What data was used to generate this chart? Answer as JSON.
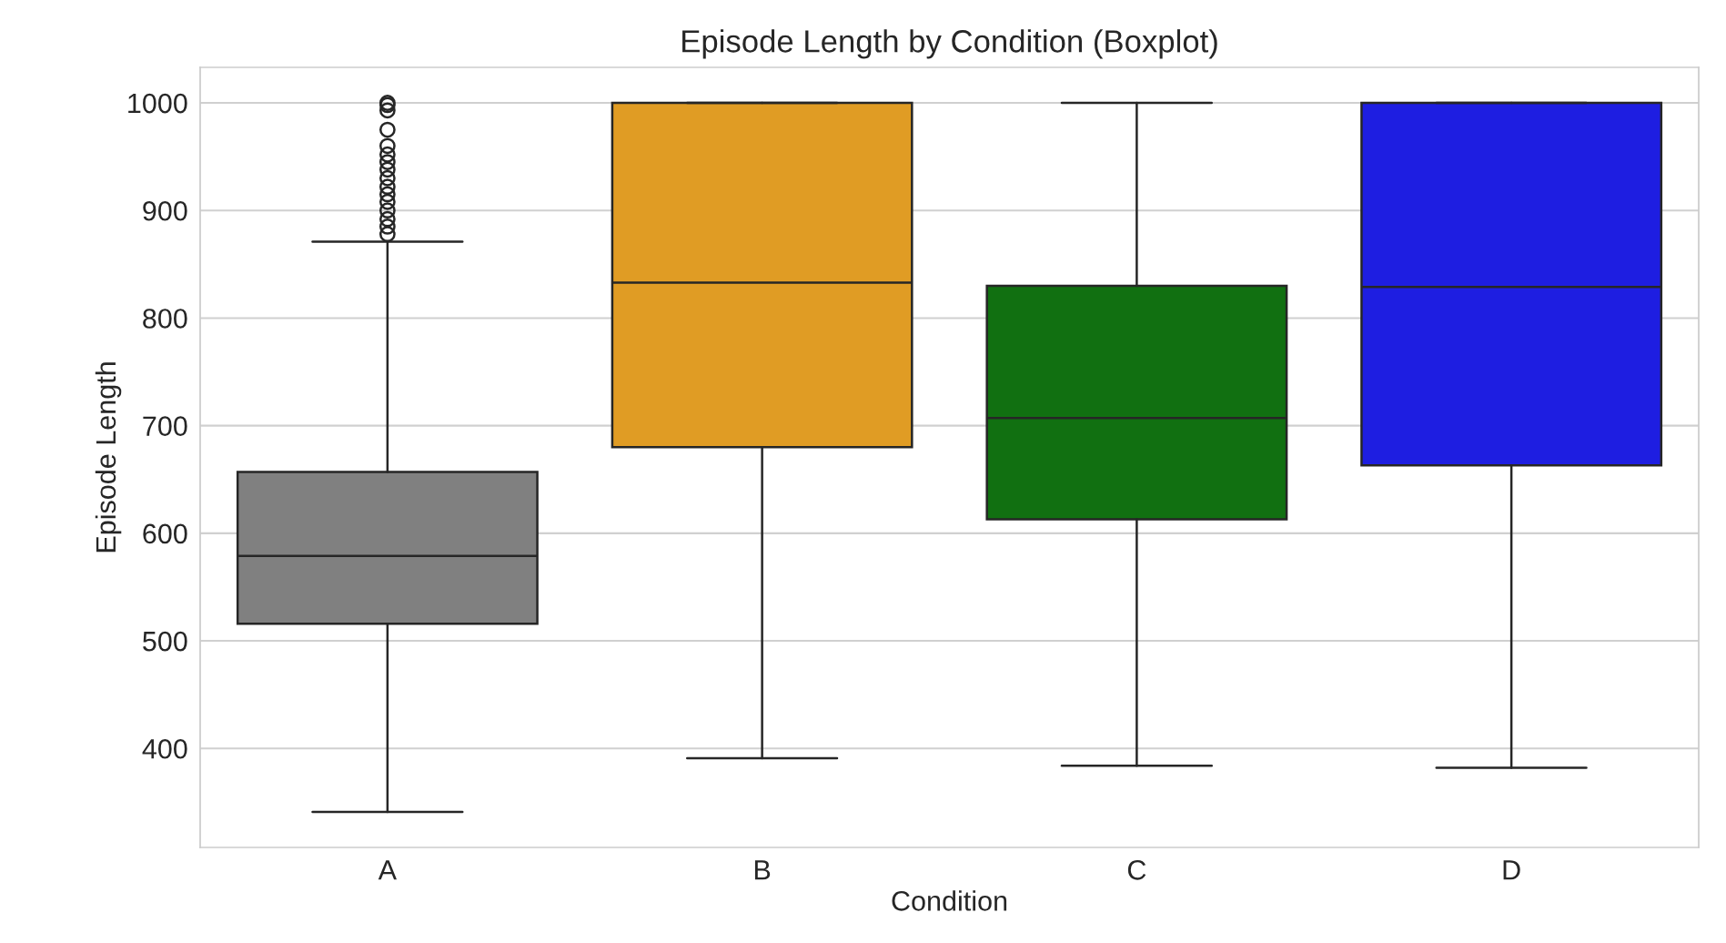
{
  "chart_data": {
    "type": "box",
    "title": "Episode Length by Condition (Boxplot)",
    "xlabel": "Condition",
    "ylabel": "Episode Length",
    "categories": [
      "A",
      "B",
      "C",
      "D"
    ],
    "boxes": [
      {
        "low": 341,
        "q1": 516,
        "median": 579,
        "q3": 657,
        "high": 871,
        "outliers": [
          878,
          885,
          892,
          900,
          908,
          915,
          922,
          930,
          938,
          945,
          952,
          960,
          975,
          993,
          998,
          1000
        ]
      },
      {
        "low": 391,
        "q1": 680,
        "median": 833,
        "q3": 1000,
        "high": 1000
      },
      {
        "low": 384,
        "q1": 613,
        "median": 707,
        "q3": 830,
        "high": 1000
      },
      {
        "low": 382,
        "q1": 663,
        "median": 829,
        "q3": 1000,
        "high": 1000
      }
    ],
    "colors": [
      "#808080",
      "#e09c24",
      "#117011",
      "#1e1ee1"
    ],
    "ylim": [
      308,
      1033
    ],
    "yticks": [
      400,
      500,
      600,
      700,
      800,
      900,
      1000
    ],
    "grid": true
  }
}
